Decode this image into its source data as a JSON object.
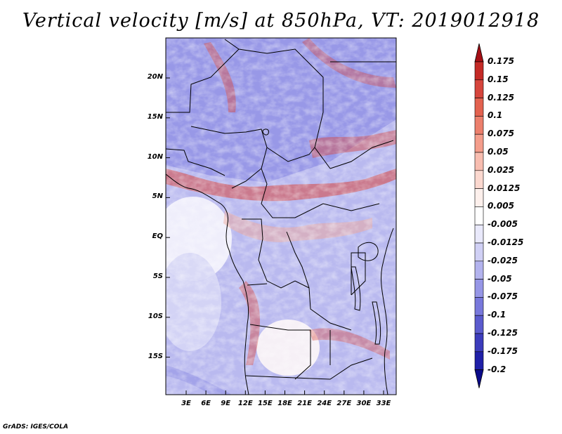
{
  "title": "Vertical velocity [m/s] at 850hPa, VT: 2019012918",
  "map": {
    "lat_ticks": [
      "20N",
      "15N",
      "10N",
      "5N",
      "EQ",
      "5S",
      "10S",
      "15S"
    ],
    "lon_ticks": [
      "3E",
      "6E",
      "9E",
      "12E",
      "15E",
      "18E",
      "21E",
      "24E",
      "27E",
      "30E",
      "33E"
    ],
    "lon_range": [
      0,
      35
    ],
    "lat_range": [
      -20,
      24.5
    ]
  },
  "colorbar": {
    "labels": [
      "0.175",
      "0.15",
      "0.125",
      "0.1",
      "0.075",
      "0.05",
      "0.025",
      "0.0125",
      "0.005",
      "-0.005",
      "-0.0125",
      "-0.025",
      "-0.05",
      "-0.075",
      "-0.1",
      "-0.125",
      "-0.175",
      "-0.2"
    ],
    "colors": [
      "#a50f15",
      "#c42a26",
      "#d6453c",
      "#e3624f",
      "#ec7f6c",
      "#f49d8b",
      "#f8bdb0",
      "#fbd8cf",
      "#fdf0ec",
      "#ffffff",
      "#e9e9fb",
      "#d0d0f5",
      "#b3b3ee",
      "#9696e6",
      "#7878dc",
      "#5b5bce",
      "#3c3cbc",
      "#2020a8",
      "#0a0a8a"
    ]
  },
  "credit": "GrADS: IGES/COLA"
}
